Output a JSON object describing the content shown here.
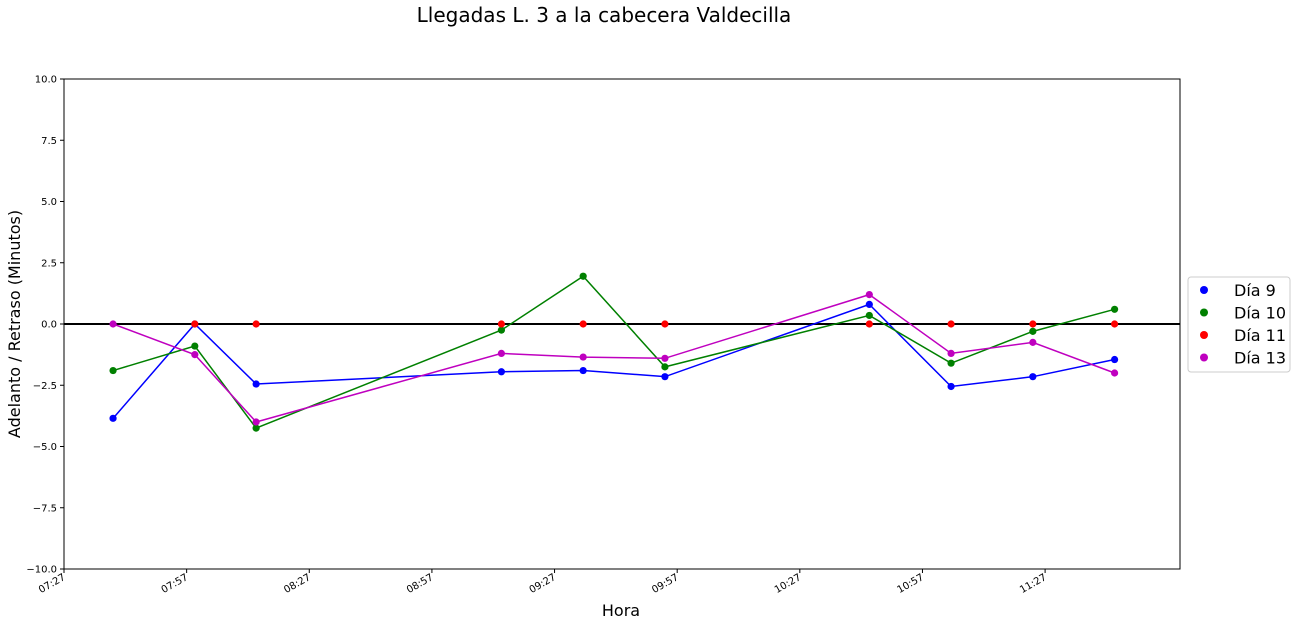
{
  "chart_data": {
    "type": "line",
    "title": "Llegadas L. 3 a la cabecera Valdecilla",
    "xlabel": "Hora",
    "ylabel": "Adelanto / Retraso (Minutos)",
    "ylim": [
      -10,
      10
    ],
    "xlim": [
      "07:27",
      "12:00"
    ],
    "x_ticks": [
      "07:27",
      "07:57",
      "08:27",
      "08:57",
      "09:27",
      "09:57",
      "10:27",
      "10:57",
      "11:27"
    ],
    "y_ticks": [
      "10.0",
      "7.5",
      "5.0",
      "2.5",
      "0.0",
      "−2.5",
      "−5.0",
      "−7.5",
      "−10.0"
    ],
    "reference_line": {
      "y": 0,
      "color": "#000000"
    },
    "grid": false,
    "legend_position": "right",
    "series": [
      {
        "name": "Día 9",
        "color": "#0000ff",
        "line": true,
        "points": [
          [
            "07:39",
            -3.85
          ],
          [
            "07:59",
            0.0
          ],
          [
            "08:14",
            -2.45
          ],
          [
            "09:14",
            -1.95
          ],
          [
            "09:34",
            -1.9
          ],
          [
            "09:54",
            -2.15
          ],
          [
            "10:44",
            0.8
          ],
          [
            "11:04",
            -2.55
          ],
          [
            "11:24",
            -2.15
          ],
          [
            "11:44",
            -1.45
          ]
        ]
      },
      {
        "name": "Día 10",
        "color": "#008000",
        "line": true,
        "points": [
          [
            "07:39",
            -1.9
          ],
          [
            "07:59",
            -0.9
          ],
          [
            "08:14",
            -4.25
          ],
          [
            "09:14",
            -0.25
          ],
          [
            "09:34",
            1.95
          ],
          [
            "09:54",
            -1.75
          ],
          [
            "10:44",
            0.35
          ],
          [
            "11:04",
            -1.6
          ],
          [
            "11:24",
            -0.3
          ],
          [
            "11:44",
            0.6
          ]
        ]
      },
      {
        "name": "Día 11",
        "color": "#ff0000",
        "line": false,
        "points": [
          [
            "07:59",
            0.0
          ],
          [
            "08:14",
            0.0
          ],
          [
            "09:14",
            0.0
          ],
          [
            "09:34",
            0.0
          ],
          [
            "09:54",
            0.0
          ],
          [
            "10:44",
            0.0
          ],
          [
            "11:04",
            0.0
          ],
          [
            "11:24",
            0.0
          ],
          [
            "11:44",
            0.0
          ]
        ]
      },
      {
        "name": "Día 13",
        "color": "#bf00bf",
        "line": true,
        "points": [
          [
            "07:39",
            0.0
          ],
          [
            "07:59",
            -1.25
          ],
          [
            "08:14",
            -4.0
          ],
          [
            "09:14",
            -1.2
          ],
          [
            "09:34",
            -1.35
          ],
          [
            "09:54",
            -1.4
          ],
          [
            "10:44",
            1.2
          ],
          [
            "11:04",
            -1.2
          ],
          [
            "11:24",
            -0.75
          ],
          [
            "11:44",
            -2.0
          ]
        ]
      }
    ]
  }
}
